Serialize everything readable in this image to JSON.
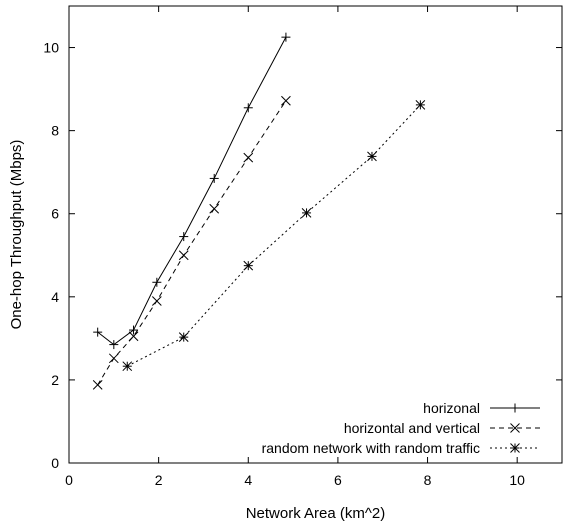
{
  "chart_data": {
    "type": "line",
    "title": "",
    "xlabel": "Network Area (km^2)",
    "ylabel": "One-hop Throughput (Mbps)",
    "xlim": [
      0,
      11
    ],
    "ylim": [
      0,
      11
    ],
    "xticks": [
      0,
      2,
      4,
      6,
      8,
      10
    ],
    "yticks": [
      0,
      2,
      4,
      6,
      8,
      10
    ],
    "grid": false,
    "legend_position": "bottom-right",
    "series": [
      {
        "name": "horizonal",
        "marker": "plus",
        "line_style": "solid",
        "x": [
          0.64,
          1.0,
          1.44,
          1.96,
          2.56,
          3.24,
          4.0,
          4.84
        ],
        "y": [
          3.15,
          2.85,
          3.2,
          4.35,
          5.45,
          6.85,
          8.55,
          10.25
        ]
      },
      {
        "name": "horizontal and vertical",
        "marker": "cross",
        "line_style": "dashed",
        "x": [
          0.64,
          1.0,
          1.44,
          1.96,
          2.56,
          3.24,
          4.0,
          4.84
        ],
        "y": [
          1.88,
          2.52,
          3.05,
          3.9,
          5.0,
          6.12,
          7.35,
          8.72
        ]
      },
      {
        "name": "random network with random traffic",
        "marker": "star",
        "line_style": "dotted",
        "x": [
          1.3,
          2.56,
          4.0,
          5.3,
          6.76,
          7.84
        ],
        "y": [
          2.33,
          3.03,
          4.75,
          6.02,
          7.38,
          8.62
        ]
      }
    ]
  }
}
